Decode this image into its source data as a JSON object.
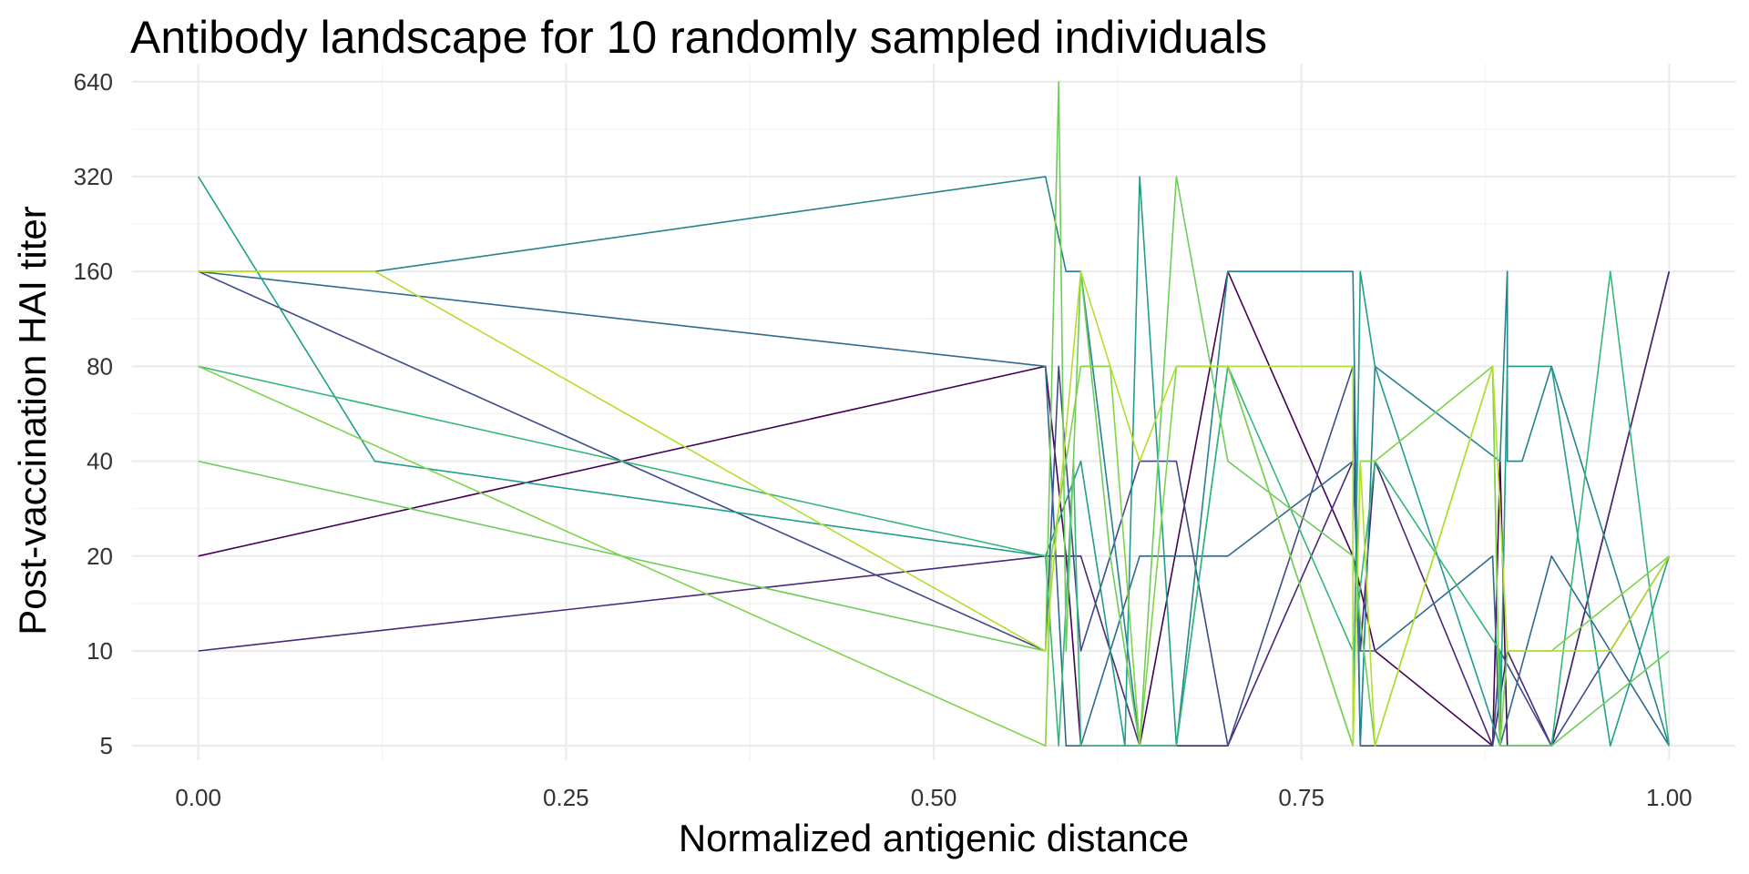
{
  "chart_data": {
    "type": "line",
    "title": "Antibody landscape for 10 randomly sampled individuals",
    "xlabel": "Normalized antigenic distance",
    "ylabel": "Post-vaccination HAI titer",
    "x_ticks": [
      "0.00",
      "0.25",
      "0.50",
      "0.75",
      "1.00"
    ],
    "y_ticks": [
      "5",
      "10",
      "20",
      "40",
      "80",
      "160",
      "320",
      "640"
    ],
    "xlim": [
      -0.045,
      1.045
    ],
    "ylim": [
      4.5,
      730
    ],
    "y_scale": "log2",
    "grid": true,
    "legend": "none",
    "series": [
      {
        "color": "#440154",
        "points": [
          [
            0,
            20
          ],
          [
            0.576,
            80
          ],
          [
            0.59,
            20
          ],
          [
            0.6,
            5
          ],
          [
            0.64,
            5
          ],
          [
            0.7,
            160
          ],
          [
            0.785,
            20
          ],
          [
            0.8,
            10
          ],
          [
            0.88,
            5
          ],
          [
            0.885,
            40
          ],
          [
            0.89,
            5
          ],
          [
            0.92,
            5
          ],
          [
            1.0,
            160
          ]
        ]
      },
      {
        "color": "#482878",
        "points": [
          [
            0,
            10
          ],
          [
            0.576,
            20
          ],
          [
            0.6,
            20
          ],
          [
            0.64,
            5
          ],
          [
            0.7,
            5
          ],
          [
            0.785,
            40
          ],
          [
            0.79,
            10
          ],
          [
            0.8,
            40
          ],
          [
            0.88,
            5
          ],
          [
            0.89,
            10
          ],
          [
            0.92,
            5
          ],
          [
            1.0,
            160
          ]
        ]
      },
      {
        "color": "#3E4A89",
        "points": [
          [
            0,
            160
          ],
          [
            0.576,
            10
          ],
          [
            0.585,
            80
          ],
          [
            0.6,
            10
          ],
          [
            0.64,
            40
          ],
          [
            0.665,
            40
          ],
          [
            0.7,
            5
          ],
          [
            0.785,
            80
          ],
          [
            0.79,
            5
          ],
          [
            0.8,
            5
          ],
          [
            0.88,
            5
          ],
          [
            0.885,
            10
          ],
          [
            0.92,
            5
          ],
          [
            1.0,
            20
          ]
        ]
      },
      {
        "color": "#31688E",
        "points": [
          [
            0,
            160
          ],
          [
            0.576,
            80
          ],
          [
            0.59,
            5
          ],
          [
            0.6,
            5
          ],
          [
            0.64,
            20
          ],
          [
            0.7,
            20
          ],
          [
            0.785,
            40
          ],
          [
            0.79,
            10
          ],
          [
            0.8,
            10
          ],
          [
            0.88,
            20
          ],
          [
            0.885,
            5
          ],
          [
            0.92,
            20
          ],
          [
            1.0,
            5
          ]
        ]
      },
      {
        "color": "#26828E",
        "points": [
          [
            0,
            160
          ],
          [
            0.12,
            160
          ],
          [
            0.576,
            320
          ],
          [
            0.59,
            160
          ],
          [
            0.6,
            160
          ],
          [
            0.64,
            5
          ],
          [
            0.665,
            5
          ],
          [
            0.7,
            160
          ],
          [
            0.785,
            160
          ],
          [
            0.79,
            5
          ],
          [
            0.8,
            80
          ],
          [
            0.885,
            40
          ],
          [
            0.89,
            160
          ],
          [
            0.89,
            40
          ],
          [
            0.9,
            40
          ],
          [
            0.92,
            80
          ],
          [
            1.0,
            5
          ]
        ]
      },
      {
        "color": "#1F9E89",
        "points": [
          [
            0,
            320
          ],
          [
            0.12,
            40
          ],
          [
            0.576,
            20
          ],
          [
            0.6,
            40
          ],
          [
            0.63,
            5
          ],
          [
            0.64,
            320
          ],
          [
            0.665,
            5
          ],
          [
            0.7,
            80
          ],
          [
            0.785,
            5
          ],
          [
            0.79,
            160
          ],
          [
            0.8,
            80
          ],
          [
            0.885,
            5
          ],
          [
            0.89,
            80
          ],
          [
            0.92,
            80
          ],
          [
            0.96,
            5
          ],
          [
            1.0,
            20
          ]
        ]
      },
      {
        "color": "#35B779",
        "points": [
          [
            0,
            80
          ],
          [
            0.576,
            20
          ],
          [
            0.585,
            5
          ],
          [
            0.595,
            40
          ],
          [
            0.6,
            5
          ],
          [
            0.64,
            5
          ],
          [
            0.665,
            5
          ],
          [
            0.7,
            80
          ],
          [
            0.785,
            10
          ],
          [
            0.8,
            40
          ],
          [
            0.885,
            10
          ],
          [
            0.885,
            5
          ],
          [
            0.92,
            5
          ],
          [
            0.96,
            160
          ],
          [
            1.0,
            5
          ]
        ]
      },
      {
        "color": "#6DCD59",
        "points": [
          [
            0,
            40
          ],
          [
            0.576,
            10
          ],
          [
            0.585,
            640
          ],
          [
            0.59,
            10
          ],
          [
            0.6,
            160
          ],
          [
            0.62,
            20
          ],
          [
            0.64,
            5
          ],
          [
            0.665,
            320
          ],
          [
            0.7,
            40
          ],
          [
            0.785,
            20
          ],
          [
            0.8,
            5
          ],
          [
            0.88,
            80
          ],
          [
            0.885,
            5
          ],
          [
            0.89,
            5
          ],
          [
            0.92,
            5
          ],
          [
            1.0,
            10
          ]
        ]
      },
      {
        "color": "#80D34A",
        "points": [
          [
            0,
            80
          ],
          [
            0.576,
            5
          ],
          [
            0.58,
            20
          ],
          [
            0.6,
            80
          ],
          [
            0.62,
            80
          ],
          [
            0.64,
            5
          ],
          [
            0.665,
            80
          ],
          [
            0.7,
            80
          ],
          [
            0.785,
            5
          ],
          [
            0.79,
            40
          ],
          [
            0.8,
            40
          ],
          [
            0.88,
            80
          ],
          [
            0.885,
            5
          ],
          [
            0.89,
            10
          ],
          [
            0.92,
            10
          ],
          [
            1.0,
            20
          ]
        ]
      },
      {
        "color": "#B4DE2C",
        "points": [
          [
            0,
            160
          ],
          [
            0.12,
            160
          ],
          [
            0.576,
            10
          ],
          [
            0.6,
            160
          ],
          [
            0.64,
            40
          ],
          [
            0.665,
            80
          ],
          [
            0.785,
            80
          ],
          [
            0.785,
            5
          ],
          [
            0.79,
            40
          ],
          [
            0.8,
            5
          ],
          [
            0.88,
            80
          ],
          [
            0.89,
            10
          ],
          [
            0.96,
            10
          ],
          [
            1.0,
            20
          ]
        ]
      }
    ]
  }
}
